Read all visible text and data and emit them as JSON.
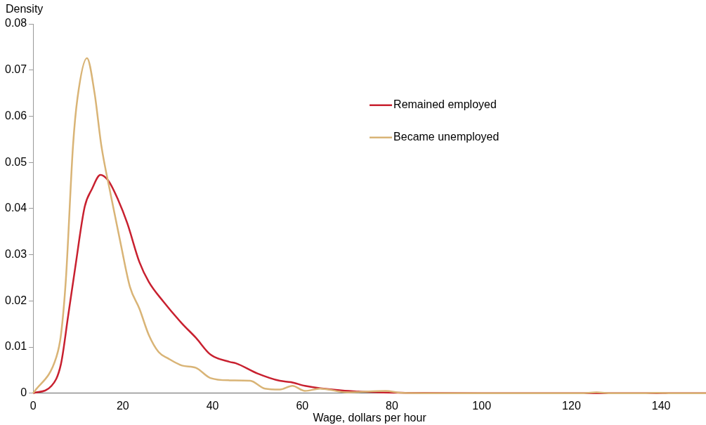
{
  "chart_data": {
    "type": "line",
    "xlabel": "Wage, dollars per hour",
    "ylabel": "Density",
    "xlim": [
      0,
      150
    ],
    "xticks": [
      0,
      20,
      40,
      60,
      80,
      100,
      120,
      140
    ],
    "ylim": [
      0,
      0.08
    ],
    "yticks": [
      0,
      0.01,
      0.02,
      0.03,
      0.04,
      0.05,
      0.06,
      0.07,
      0.08
    ],
    "grid": false,
    "legend": "top right",
    "marker": "none",
    "line_style": "solid",
    "series": [
      {
        "name": "Remained employed",
        "color": "#c8202f",
        "x": [
          0,
          4.1,
          6.2,
          7.8,
          9.4,
          11.5,
          13.1,
          15,
          16.8,
          18.9,
          21,
          23.7,
          25.8,
          29,
          33.2,
          36.3,
          39.5,
          43.8,
          45.2,
          50,
          55,
          57.5,
          60.6,
          68.7,
          77,
          83,
          100,
          120,
          150
        ],
        "values": [
          0,
          0.0016,
          0.0063,
          0.0167,
          0.0273,
          0.0404,
          0.0442,
          0.0473,
          0.046,
          0.042,
          0.0368,
          0.0284,
          0.0241,
          0.0199,
          0.0151,
          0.012,
          0.0084,
          0.0068,
          0.0065,
          0.0043,
          0.0027,
          0.0024,
          0.0016,
          0.0006,
          0.0002,
          0.0001,
          0,
          0,
          0
        ]
      },
      {
        "name": "Became unemployed",
        "color": "#d9b476",
        "x": [
          0,
          5.2,
          6.2,
          7.3,
          8.9,
          9.9,
          12,
          13.7,
          15.2,
          17.3,
          19.5,
          21.6,
          23.7,
          25.8,
          28,
          30,
          33.2,
          36.3,
          39.5,
          43.8,
          48.4,
          51.7,
          55,
          57.8,
          60.6,
          64,
          70,
          78.6,
          82,
          100,
          122,
          125.6,
          129,
          136,
          139,
          143,
          150
        ],
        "values": [
          0,
          0.0079,
          0.0126,
          0.0246,
          0.0537,
          0.064,
          0.0726,
          0.065,
          0.0537,
          0.043,
          0.0325,
          0.023,
          0.0183,
          0.0126,
          0.0089,
          0.0076,
          0.006,
          0.0055,
          0.0033,
          0.0028,
          0.0027,
          0.001,
          0.0008,
          0.0016,
          0.0005,
          0.001,
          0.0002,
          0.0005,
          0.0001,
          0,
          0,
          0.0002,
          0,
          0,
          0.0001,
          0,
          0
        ]
      }
    ]
  }
}
